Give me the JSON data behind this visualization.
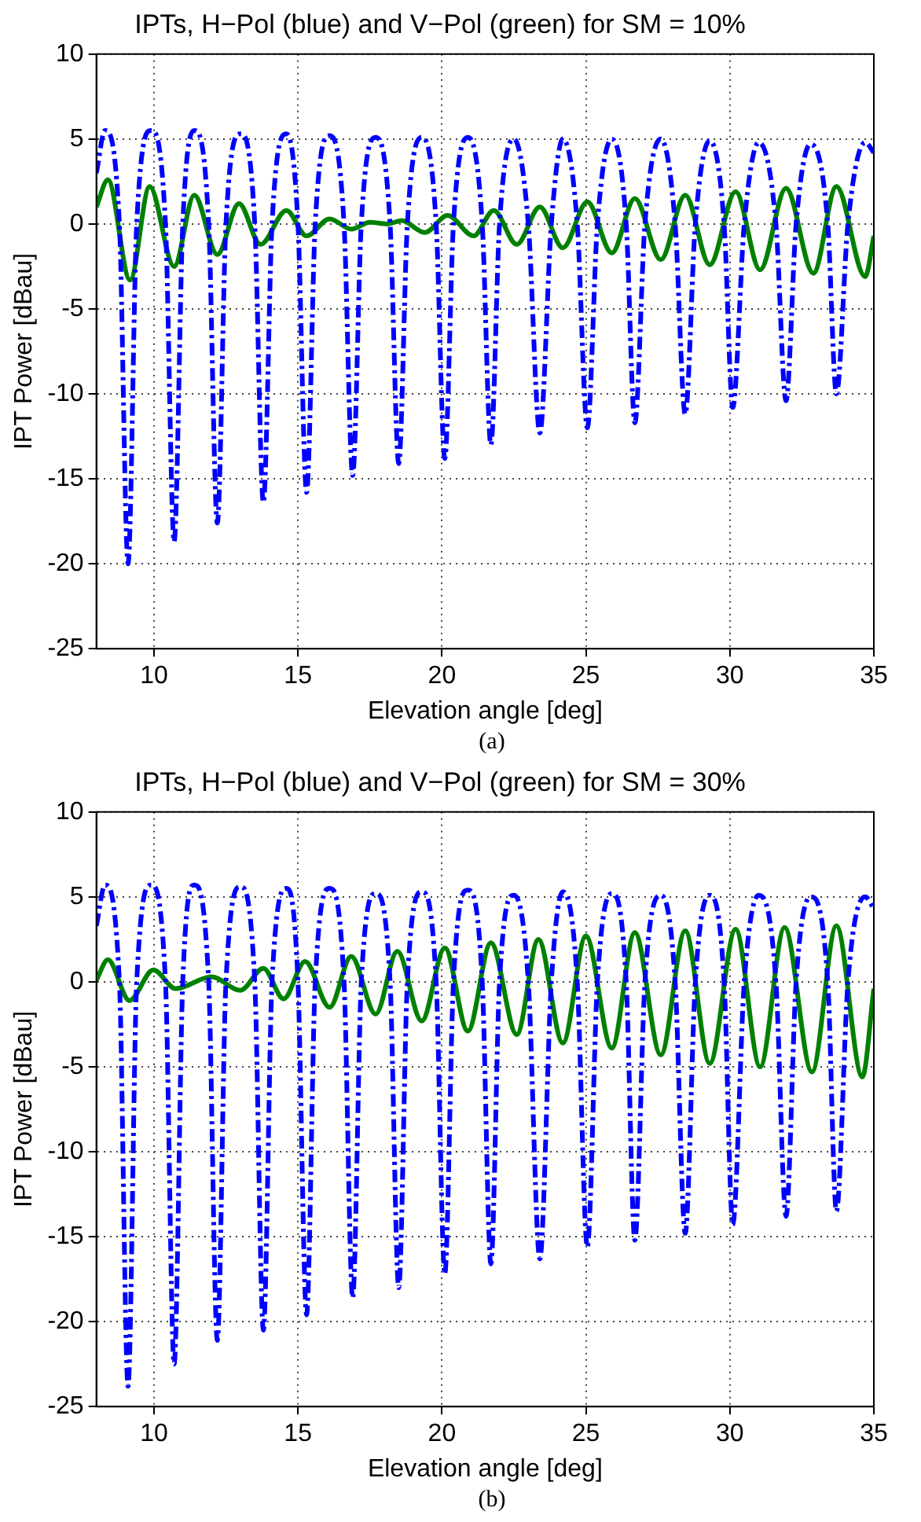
{
  "chart_data": [
    {
      "type": "line",
      "title": "IPTs, H−Pol (blue) and V−Pol (green) for SM = 10%",
      "xlabel": "Elevation angle [deg]",
      "ylabel": "IPT Power [dBau]",
      "annotations": [
        "(a)"
      ],
      "xlim": [
        8,
        35
      ],
      "xticks": [
        10,
        15,
        20,
        25,
        30,
        35
      ],
      "ylim": [
        -25,
        10
      ],
      "yticks": [
        -25,
        -20,
        -15,
        -10,
        -5,
        0,
        5,
        10
      ],
      "grid": true,
      "marker": "none",
      "series": [
        {
          "color": "#0000ff",
          "line_style": "dashed",
          "x": [
            8,
            8.3,
            8.8,
            9.1,
            9.4,
            9.9,
            10.4,
            10.7,
            11,
            11.4,
            11.9,
            12.2,
            12.5,
            13,
            13.5,
            13.8,
            14.1,
            14.6,
            15,
            15.3,
            15.6,
            16.1,
            16.6,
            16.9,
            17.2,
            17.7,
            18.2,
            18.5,
            18.8,
            19.3,
            19.8,
            20.1,
            20.4,
            20.9,
            21.4,
            21.7,
            22,
            22.5,
            23,
            23.4,
            23.8,
            24.2,
            24.7,
            25.05,
            25.4,
            25.9,
            26.4,
            26.7,
            27.05,
            27.6,
            28.1,
            28.45,
            28.8,
            29.3,
            29.8,
            30.1,
            30.5,
            31,
            31.6,
            31.95,
            32.3,
            32.8,
            33.4,
            33.7,
            34.1,
            34.7,
            35
          ],
          "values": [
            3,
            5.5,
            0,
            -20,
            0,
            5.5,
            0,
            -18.7,
            0,
            5.5,
            0,
            -17.6,
            0,
            5.3,
            0,
            -16.4,
            0,
            5.3,
            0,
            -15.8,
            0,
            5.2,
            0,
            -14.8,
            0,
            5.1,
            0,
            -14.1,
            0,
            5.1,
            0,
            -13.8,
            0,
            5.1,
            0,
            -13,
            0,
            5,
            0,
            -12.3,
            0,
            5,
            0,
            -12,
            0,
            5,
            0,
            -11.7,
            0,
            5,
            0,
            -11.2,
            0,
            4.9,
            0,
            -10.8,
            0,
            4.8,
            0,
            -10.4,
            0,
            4.7,
            0,
            -10,
            0,
            4.8,
            4.2
          ]
        },
        {
          "color": "#008000",
          "line_style": "solid",
          "x": [
            8,
            8.4,
            9.17,
            9.85,
            10.7,
            11.4,
            12.2,
            12.95,
            13.7,
            14.6,
            15.3,
            16.1,
            16.85,
            17.5,
            18.1,
            18.6,
            19.4,
            20.2,
            21.1,
            21.8,
            22.6,
            23.4,
            24.2,
            25.05,
            25.9,
            26.7,
            27.6,
            28.45,
            29.3,
            30.2,
            31.05,
            31.95,
            32.9,
            33.7,
            34.7,
            35
          ],
          "values": [
            1,
            2.6,
            -3.3,
            2.2,
            -2.5,
            1.7,
            -1.8,
            1.2,
            -1.2,
            0.8,
            -0.7,
            0.3,
            -0.3,
            0.1,
            0,
            0.2,
            -0.5,
            0.5,
            -0.7,
            0.8,
            -1.2,
            1,
            -1.4,
            1.3,
            -1.7,
            1.5,
            -2.1,
            1.7,
            -2.4,
            1.9,
            -2.7,
            2.1,
            -2.9,
            2.2,
            -3.1,
            -0.7
          ]
        }
      ]
    },
    {
      "type": "line",
      "title": "IPTs, H−Pol (blue) and V−Pol (green) for SM = 30%",
      "xlabel": "Elevation angle [deg]",
      "ylabel": "IPT Power [dBau]",
      "annotations": [
        "(b)"
      ],
      "xlim": [
        8,
        35
      ],
      "xticks": [
        10,
        15,
        20,
        25,
        30,
        35
      ],
      "ylim": [
        -25,
        10
      ],
      "yticks": [
        -25,
        -20,
        -15,
        -10,
        -5,
        0,
        5,
        10
      ],
      "grid": true,
      "marker": "none",
      "series": [
        {
          "color": "#0000ff",
          "line_style": "dashed",
          "x": [
            8,
            8.3,
            8.8,
            9.1,
            9.4,
            9.9,
            10.4,
            10.7,
            11,
            11.4,
            11.9,
            12.2,
            12.5,
            13,
            13.5,
            13.8,
            14.1,
            14.6,
            15,
            15.3,
            15.6,
            16.1,
            16.6,
            16.9,
            17.2,
            17.7,
            18.2,
            18.5,
            18.8,
            19.3,
            19.8,
            20.1,
            20.4,
            20.9,
            21.4,
            21.7,
            22,
            22.5,
            23,
            23.4,
            23.8,
            24.2,
            24.7,
            25.05,
            25.4,
            25.9,
            26.4,
            26.7,
            27.05,
            27.6,
            28.1,
            28.45,
            28.8,
            29.3,
            29.8,
            30.1,
            30.5,
            31,
            31.6,
            31.95,
            32.3,
            32.8,
            33.4,
            33.7,
            34.1,
            34.7,
            35
          ],
          "values": [
            3.3,
            5.7,
            0,
            -23.8,
            0,
            5.7,
            0,
            -22.5,
            0,
            5.7,
            0,
            -21.1,
            0,
            5.6,
            0,
            -20.5,
            0,
            5.5,
            0,
            -19.6,
            0,
            5.5,
            0,
            -18.6,
            0,
            5.2,
            0,
            -18,
            0,
            5.3,
            0,
            -17.2,
            0,
            5.4,
            0,
            -16.6,
            0,
            5.1,
            0,
            -16.3,
            0,
            5.3,
            0,
            -15.6,
            0,
            5.2,
            0,
            -15.2,
            0,
            5.1,
            0,
            -14.8,
            0,
            5.1,
            0,
            -14.3,
            0,
            5.1,
            0,
            -13.8,
            0,
            5,
            0,
            -13.5,
            0,
            5,
            4.3
          ]
        },
        {
          "color": "#008000",
          "line_style": "solid",
          "x": [
            8,
            8.4,
            9.15,
            9.98,
            10.75,
            12,
            13,
            13.8,
            14.5,
            15.25,
            16.1,
            16.85,
            17.7,
            18.45,
            19.3,
            20.1,
            20.9,
            21.7,
            22.6,
            23.35,
            24.2,
            25,
            25.9,
            26.7,
            27.6,
            28.45,
            29.3,
            30.2,
            31.05,
            31.9,
            32.85,
            33.7,
            34.6,
            35
          ],
          "values": [
            0.1,
            1.3,
            -1.1,
            0.7,
            -0.4,
            0.3,
            -0.5,
            0.8,
            -1,
            1.2,
            -1.5,
            1.5,
            -1.9,
            1.8,
            -2.3,
            2,
            -2.9,
            2.3,
            -3.1,
            2.5,
            -3.6,
            2.7,
            -3.9,
            2.9,
            -4.3,
            3,
            -4.8,
            3.1,
            -5,
            3.2,
            -5.3,
            3.3,
            -5.6,
            -0.4
          ]
        }
      ]
    }
  ]
}
